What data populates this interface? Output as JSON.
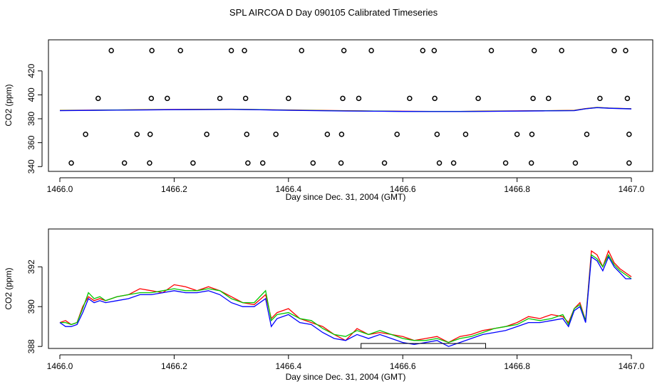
{
  "title": "SPL AIRCOA D  Day 090105  Calibrated Timeseries",
  "chart_data": [
    {
      "type": "scatter",
      "xlabel": "Day since Dec. 31, 2004 (GMT)",
      "ylabel": "CO2 (ppm)",
      "xlim": [
        1466.0,
        1467.0
      ],
      "ylim": [
        336,
        446
      ],
      "xticks": [
        "1466.0",
        "1466.2",
        "1466.4",
        "1466.6",
        "1466.8",
        "1467.0"
      ],
      "yticks": [
        "340",
        "360",
        "380",
        "400",
        "420"
      ],
      "ytick_values": [
        340,
        360,
        380,
        400,
        420
      ],
      "points": [
        {
          "level": 343,
          "x": [
            1466.02,
            1466.113,
            1466.157,
            1466.233,
            1466.329,
            1466.355,
            1466.443,
            1466.492,
            1466.568,
            1466.664,
            1466.689,
            1466.78,
            1466.825,
            1466.902,
            1466.996
          ]
        },
        {
          "level": 367,
          "x": [
            1466.045,
            1466.135,
            1466.158,
            1466.257,
            1466.327,
            1466.378,
            1466.468,
            1466.493,
            1466.59,
            1466.66,
            1466.71,
            1466.8,
            1466.826,
            1466.922,
            1466.996
          ]
        },
        {
          "level": 397,
          "x": [
            1466.067,
            1466.16,
            1466.188,
            1466.28,
            1466.325,
            1466.4,
            1466.495,
            1466.523,
            1466.612,
            1466.656,
            1466.732,
            1466.828,
            1466.855,
            1466.945,
            1466.993
          ]
        },
        {
          "level": 437,
          "x": [
            1466.09,
            1466.161,
            1466.211,
            1466.3,
            1466.323,
            1466.423,
            1466.497,
            1466.545,
            1466.635,
            1466.655,
            1466.755,
            1466.83,
            1466.878,
            1466.97,
            1466.99
          ]
        }
      ],
      "series": [
        {
          "color": "#ff0000",
          "x": [
            1466.0,
            1466.05,
            1466.1,
            1466.15,
            1466.2,
            1466.25,
            1466.3,
            1466.35,
            1466.4,
            1466.45,
            1466.5,
            1466.55,
            1466.6,
            1466.65,
            1466.7,
            1466.75,
            1466.8,
            1466.85,
            1466.9,
            1466.92,
            1466.94,
            1466.96,
            1467.0
          ],
          "values": [
            387.0,
            387.2,
            387.4,
            387.6,
            387.8,
            387.9,
            388.0,
            387.7,
            387.3,
            387.0,
            386.7,
            386.5,
            386.3,
            386.2,
            386.2,
            386.4,
            386.6,
            386.8,
            387.0,
            388.5,
            389.5,
            389.0,
            388.4
          ]
        },
        {
          "color": "#00c800",
          "x": [
            1466.0,
            1466.05,
            1466.1,
            1466.15,
            1466.2,
            1466.25,
            1466.3,
            1466.35,
            1466.4,
            1466.45,
            1466.5,
            1466.55,
            1466.6,
            1466.65,
            1466.7,
            1466.75,
            1466.8,
            1466.85,
            1466.9,
            1466.92,
            1466.94,
            1466.96,
            1467.0
          ],
          "values": [
            386.9,
            387.1,
            387.3,
            387.5,
            387.7,
            387.8,
            387.9,
            387.6,
            387.2,
            386.9,
            386.6,
            386.4,
            386.2,
            386.1,
            386.1,
            386.3,
            386.5,
            386.7,
            386.9,
            388.4,
            389.4,
            388.9,
            388.3
          ]
        },
        {
          "color": "#0000ff",
          "x": [
            1466.0,
            1466.05,
            1466.1,
            1466.15,
            1466.2,
            1466.25,
            1466.3,
            1466.35,
            1466.4,
            1466.45,
            1466.5,
            1466.55,
            1466.6,
            1466.65,
            1466.7,
            1466.75,
            1466.8,
            1466.85,
            1466.9,
            1466.92,
            1466.94,
            1466.96,
            1467.0
          ],
          "values": [
            386.8,
            387.0,
            387.2,
            387.4,
            387.6,
            387.7,
            387.8,
            387.5,
            387.1,
            386.8,
            386.5,
            386.3,
            386.1,
            386.0,
            386.0,
            386.2,
            386.4,
            386.6,
            386.8,
            388.3,
            389.3,
            388.8,
            388.2
          ]
        }
      ]
    },
    {
      "type": "line",
      "xlabel": "Day since Dec. 31, 2004 (GMT)",
      "ylabel": "CO2 (ppm)",
      "xlim": [
        1466.0,
        1467.0
      ],
      "ylim": [
        387.9,
        393.9
      ],
      "xticks": [
        "1466.0",
        "1466.2",
        "1466.4",
        "1466.6",
        "1466.8",
        "1467.0"
      ],
      "yticks": [
        "388",
        "390",
        "392"
      ],
      "ytick_values": [
        388,
        390,
        392
      ],
      "x": [
        1466.0,
        1466.01,
        1466.02,
        1466.03,
        1466.04,
        1466.05,
        1466.06,
        1466.07,
        1466.08,
        1466.1,
        1466.12,
        1466.14,
        1466.16,
        1466.18,
        1466.2,
        1466.22,
        1466.24,
        1466.26,
        1466.28,
        1466.3,
        1466.32,
        1466.34,
        1466.36,
        1466.37,
        1466.38,
        1466.4,
        1466.42,
        1466.44,
        1466.46,
        1466.48,
        1466.5,
        1466.52,
        1466.54,
        1466.56,
        1466.58,
        1466.6,
        1466.62,
        1466.64,
        1466.66,
        1466.68,
        1466.7,
        1466.72,
        1466.74,
        1466.76,
        1466.78,
        1466.8,
        1466.82,
        1466.84,
        1466.86,
        1466.88,
        1466.89,
        1466.9,
        1466.91,
        1466.92,
        1466.93,
        1466.94,
        1466.95,
        1466.96,
        1466.97,
        1466.98,
        1466.99,
        1467.0
      ],
      "series": [
        {
          "color": "#ff0000",
          "values": [
            389.2,
            389.3,
            389.1,
            389.2,
            390.0,
            390.5,
            390.3,
            390.4,
            390.3,
            390.5,
            390.6,
            390.9,
            390.8,
            390.7,
            391.1,
            391.0,
            390.8,
            391.0,
            390.8,
            390.5,
            390.2,
            390.1,
            390.6,
            389.4,
            389.7,
            389.9,
            389.4,
            389.2,
            389.0,
            388.6,
            388.3,
            388.9,
            388.6,
            388.7,
            388.6,
            388.5,
            388.3,
            388.4,
            388.5,
            388.2,
            388.5,
            388.6,
            388.8,
            388.9,
            389.0,
            389.2,
            389.5,
            389.4,
            389.6,
            389.5,
            389.2,
            389.9,
            390.2,
            389.3,
            392.8,
            392.6,
            392.0,
            392.8,
            392.2,
            391.9,
            391.7,
            391.5
          ]
        },
        {
          "color": "#00c800",
          "values": [
            389.2,
            389.2,
            389.1,
            389.2,
            389.9,
            390.7,
            390.4,
            390.5,
            390.3,
            390.5,
            390.6,
            390.7,
            390.7,
            390.8,
            390.9,
            390.8,
            390.8,
            390.9,
            390.8,
            390.4,
            390.2,
            390.2,
            390.8,
            389.3,
            389.6,
            389.7,
            389.4,
            389.3,
            388.9,
            388.6,
            388.5,
            388.8,
            388.6,
            388.8,
            388.6,
            388.4,
            388.3,
            388.3,
            388.4,
            388.2,
            388.4,
            388.5,
            388.7,
            388.9,
            389.0,
            389.1,
            389.4,
            389.3,
            389.4,
            389.6,
            389.1,
            389.9,
            390.1,
            389.3,
            392.6,
            392.4,
            392.0,
            392.6,
            392.1,
            391.8,
            391.6,
            391.4
          ]
        },
        {
          "color": "#0000ff",
          "values": [
            389.2,
            389.0,
            389.0,
            389.1,
            389.7,
            390.4,
            390.2,
            390.3,
            390.2,
            390.3,
            390.4,
            390.6,
            390.6,
            390.7,
            390.8,
            390.7,
            390.7,
            390.8,
            390.6,
            390.2,
            390.0,
            390.0,
            390.4,
            389.0,
            389.4,
            389.6,
            389.2,
            389.1,
            388.7,
            388.4,
            388.3,
            388.6,
            388.4,
            388.6,
            388.4,
            388.2,
            388.1,
            388.2,
            388.3,
            388.0,
            388.2,
            388.4,
            388.6,
            388.7,
            388.8,
            389.0,
            389.2,
            389.2,
            389.3,
            389.4,
            389.0,
            389.8,
            390.0,
            389.2,
            392.5,
            392.3,
            391.8,
            392.5,
            392.0,
            391.7,
            391.4,
            391.4
          ]
        }
      ],
      "range_bar": {
        "x": [
          1466.527,
          1466.745
        ]
      }
    }
  ]
}
